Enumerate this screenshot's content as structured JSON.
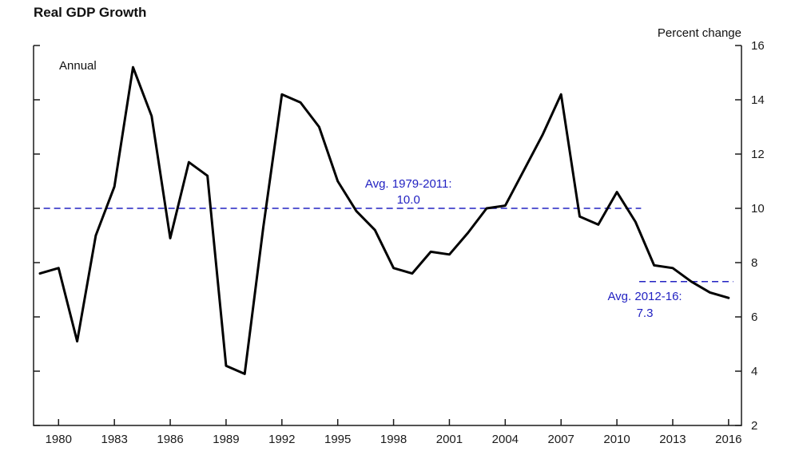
{
  "header": {
    "title": "Real GDP Growth",
    "unit_label": "Percent change",
    "frequency_label": "Annual"
  },
  "chart_data": {
    "type": "line",
    "title": "Real GDP Growth",
    "frequency_label": "Annual",
    "xlabel": "",
    "ylabel": "Percent change",
    "ylim": [
      2,
      16
    ],
    "xlim": [
      1979,
      2016.35
    ],
    "yticks": [
      2,
      4,
      6,
      8,
      10,
      12,
      14,
      16
    ],
    "xticks": [
      1980,
      1983,
      1986,
      1989,
      1992,
      1995,
      1998,
      2001,
      2004,
      2007,
      2010,
      2013,
      2016
    ],
    "grid": false,
    "legend": "none",
    "line_color": "#000000",
    "axis_color": "#1a1a1a",
    "text_color": "#1a1a1a",
    "accent_color": "#2222c2",
    "series": [
      {
        "name": "Real GDP Growth (annual percent change)",
        "x": [
          1979,
          1980,
          1981,
          1982,
          1983,
          1984,
          1985,
          1986,
          1987,
          1988,
          1989,
          1990,
          1991,
          1992,
          1993,
          1994,
          1995,
          1996,
          1997,
          1998,
          1999,
          2000,
          2001,
          2002,
          2003,
          2004,
          2005,
          2006,
          2007,
          2008,
          2009,
          2010,
          2011,
          2012,
          2013,
          2014,
          2015,
          2016
        ],
        "values": [
          7.6,
          7.8,
          5.1,
          9.0,
          10.8,
          15.2,
          13.4,
          8.9,
          11.7,
          11.2,
          4.2,
          3.9,
          9.3,
          14.2,
          13.9,
          13.0,
          11.0,
          9.9,
          9.2,
          7.8,
          7.6,
          8.4,
          8.3,
          9.1,
          10.0,
          10.1,
          11.4,
          12.7,
          14.2,
          9.7,
          9.4,
          10.6,
          9.5,
          7.9,
          7.8,
          7.3,
          6.9,
          6.7
        ]
      }
    ],
    "reference_lines": [
      {
        "name": "avg-1979-2011",
        "label": [
          "Avg. 1979-2011:",
          "10.0"
        ],
        "value": 10.0,
        "x_start": 1979.2,
        "x_end": 2011.3,
        "label_x": 1998.8,
        "label_position": "above",
        "color": "#2222c2"
      },
      {
        "name": "avg-2012-16",
        "label": [
          "Avg. 2012-16:",
          "7.3"
        ],
        "value": 7.3,
        "x_start": 2011.2,
        "x_end": 2016.25,
        "label_x": 2011.5,
        "label_position": "below",
        "color": "#2222c2"
      }
    ]
  }
}
